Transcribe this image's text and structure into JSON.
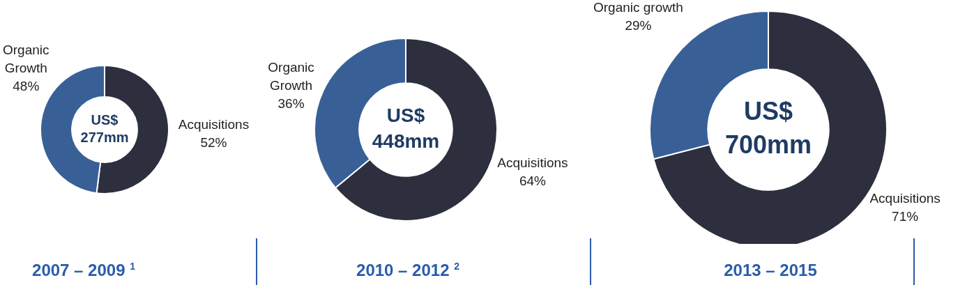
{
  "chart_data": [
    {
      "type": "donut",
      "title": "2007 – 2009 $^{1}$",
      "categories": [
        "Acquisitions",
        "Organic Growth"
      ],
      "values": [
        52,
        48
      ],
      "value_labels": [
        "52%",
        "48%"
      ],
      "colors": [
        "#2d2f3e",
        "#386096"
      ],
      "annotations": [
        "US$",
        "277mm"
      ],
      "legend": false
    },
    {
      "type": "donut",
      "title": "2010 – 2012 $^{2}$",
      "categories": [
        "Acquisitions",
        "Organic Growth"
      ],
      "values": [
        64,
        36
      ],
      "value_labels": [
        "64%",
        "36%"
      ],
      "colors": [
        "#2d2f3e",
        "#386096"
      ],
      "annotations": [
        "US$",
        "448mm"
      ],
      "legend": false
    },
    {
      "type": "donut",
      "title": "2013 – 2015",
      "categories": [
        "Acquisitions",
        "Organic growth"
      ],
      "values": [
        71,
        29
      ],
      "value_labels": [
        "71%",
        "29%"
      ],
      "colors": [
        "#2d2f3e",
        "#386096"
      ],
      "annotations": [
        "US$",
        "700mm"
      ],
      "legend": false
    }
  ]
}
